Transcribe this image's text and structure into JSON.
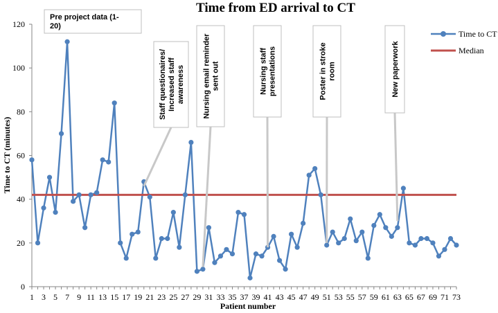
{
  "chart_data": {
    "type": "line",
    "title": "Time from ED arrival to CT",
    "xlabel": "Patient number",
    "ylabel": "Time to CT (minutes)",
    "ylim": [
      0,
      120
    ],
    "yticks": [
      0,
      20,
      40,
      60,
      80,
      100,
      120
    ],
    "xlim": [
      1,
      73
    ],
    "xticks": [
      1,
      3,
      5,
      7,
      9,
      11,
      13,
      15,
      17,
      19,
      21,
      23,
      25,
      27,
      29,
      31,
      33,
      35,
      37,
      39,
      41,
      43,
      45,
      47,
      49,
      51,
      53,
      55,
      57,
      59,
      61,
      63,
      65,
      67,
      69,
      71,
      73
    ],
    "grid": false,
    "legend_position": "top-right",
    "series": [
      {
        "name": "Time to CT",
        "color": "#4f81bd",
        "x": [
          1,
          2,
          3,
          4,
          5,
          6,
          7,
          8,
          9,
          10,
          11,
          12,
          13,
          14,
          15,
          16,
          17,
          18,
          19,
          20,
          21,
          22,
          23,
          24,
          25,
          26,
          27,
          28,
          29,
          30,
          31,
          32,
          33,
          34,
          35,
          36,
          37,
          38,
          39,
          40,
          41,
          42,
          43,
          44,
          45,
          46,
          47,
          48,
          49,
          50,
          51,
          52,
          53,
          54,
          55,
          56,
          57,
          58,
          59,
          60,
          61,
          62,
          63,
          64,
          65,
          66,
          67,
          68,
          69,
          70,
          71,
          72,
          73
        ],
        "values": [
          58,
          20,
          36,
          50,
          34,
          70,
          112,
          39,
          42,
          27,
          42,
          43,
          58,
          57,
          84,
          20,
          13,
          24,
          25,
          48,
          41,
          13,
          22,
          22,
          34,
          18,
          42,
          66,
          7,
          8,
          27,
          11,
          14,
          17,
          15,
          34,
          33,
          4,
          15,
          14,
          18,
          23,
          12,
          8,
          24,
          18,
          29,
          51,
          54,
          42,
          19,
          25,
          20,
          22,
          31,
          21,
          25,
          13,
          28,
          33,
          27,
          23,
          27,
          45,
          20,
          19,
          22,
          22,
          20,
          14,
          17,
          22,
          19
        ]
      },
      {
        "name": "Median",
        "color": "#c0504d",
        "x": [
          1,
          73
        ],
        "values": [
          42,
          42
        ]
      }
    ],
    "annotations": [
      {
        "text": "Pre project data (1-20)",
        "lines": [
          "Pre project data (1-",
          "20)"
        ]
      },
      {
        "text": "Staff questionaires/ Increased staff awareness",
        "lines": [
          "Staff questionaires/",
          "Increased staff",
          "awareness"
        ],
        "patient": 20,
        "value": 46
      },
      {
        "text": "Nursing email reminder sent out",
        "lines": [
          "Nursing email reminder",
          "sent out"
        ],
        "patient": 30,
        "value": 9
      },
      {
        "text": "Nursing staff presentations",
        "lines": [
          "Nursing staff",
          "presentations"
        ],
        "patient": 41,
        "value": 18
      },
      {
        "text": "Poster in stroke room",
        "lines": [
          "Poster in stroke",
          "room"
        ],
        "patient": 51,
        "value": 20
      },
      {
        "text": "New paperwork",
        "lines": [
          "New paperwork"
        ],
        "patient": 63,
        "value": 30
      }
    ]
  }
}
